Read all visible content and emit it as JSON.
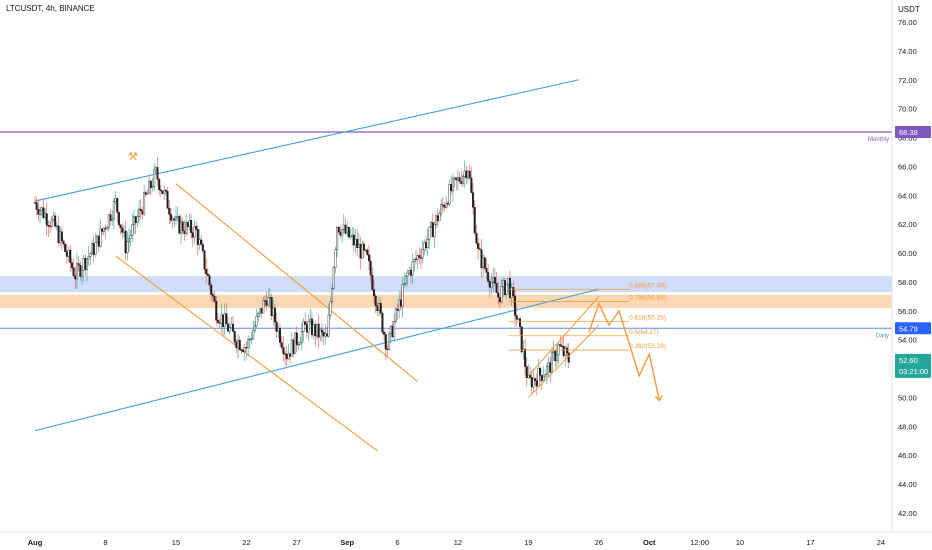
{
  "header": {
    "symbol_title": "LTCUSDT, 4h, BINANCE"
  },
  "axis": {
    "currency": "USDT",
    "y_ticks": [
      "76.00",
      "74.00",
      "72.00",
      "70.00",
      "68.00",
      "66.00",
      "64.00",
      "62.00",
      "60.00",
      "58.00",
      "56.00",
      "54.00",
      "52.00",
      "50.00",
      "48.00",
      "46.00",
      "44.00",
      "42.00"
    ],
    "x_ticks": [
      "Aug",
      "8",
      "15",
      "22",
      "27",
      "Sep",
      "6",
      "12",
      "19",
      "26",
      "Oct",
      "12:00",
      "10",
      "17",
      "24"
    ]
  },
  "colors": {
    "up": "#26a69a",
    "down": "#ef5350",
    "candle_body": "#1f1f1f",
    "channel": "#3ea0e0",
    "fib": "#f59a3a",
    "monthly": "#7e57c2",
    "daily": "#5b8def",
    "zone_blue": "#c7d7f7",
    "zone_orange": "#fbd0a6",
    "price_label": "#26a69a"
  },
  "badges": {
    "monthly": {
      "label": "Monthly",
      "value": "68.38"
    },
    "daily": {
      "label": "Daily",
      "value": "54.79"
    },
    "last_price": {
      "value": "52.60",
      "countdown": "03:21:00"
    }
  },
  "fib_levels": [
    {
      "ratio": "0.886",
      "label": "0.886(57.49)",
      "price": 57.49
    },
    {
      "ratio": "0.786",
      "label": "0.786(56.65)",
      "price": 56.65
    },
    {
      "ratio": "0.618",
      "label": "0.618(55.25)",
      "price": 55.25
    },
    {
      "ratio": "0.5",
      "label": "0.5(54.27)",
      "price": 54.27
    },
    {
      "ratio": "0.382",
      "label": "0.382(53.28)",
      "price": 53.28
    }
  ],
  "chart_data": {
    "type": "candlestick",
    "symbol": "LTCUSDT",
    "interval": "4h",
    "exchange": "BINANCE",
    "ylim": [
      41,
      77.5
    ],
    "x_range": [
      "Aug 1",
      "Sep 24"
    ],
    "grid": false,
    "monthly_level": 68.38,
    "daily_level": 54.79,
    "last_price": 52.6,
    "zones": [
      {
        "name": "blue-zone",
        "from": 57.3,
        "to": 58.4
      },
      {
        "name": "orange-zone",
        "from": 56.2,
        "to": 57.1
      }
    ],
    "ohlc_path": [
      {
        "date": "Aug 1",
        "price": 63.5
      },
      {
        "date": "Aug 3",
        "price": 61.8
      },
      {
        "date": "Aug 5",
        "price": 58.5
      },
      {
        "date": "Aug 7",
        "price": 60.5
      },
      {
        "date": "Aug 9",
        "price": 63.5
      },
      {
        "date": "Aug 10",
        "price": 60.5
      },
      {
        "date": "Aug 13",
        "price": 65.5
      },
      {
        "date": "Aug 15",
        "price": 62.0
      },
      {
        "date": "Aug 17",
        "price": 61.5
      },
      {
        "date": "Aug 19",
        "price": 56.0
      },
      {
        "date": "Aug 21",
        "price": 54.0
      },
      {
        "date": "Aug 22",
        "price": 53.5
      },
      {
        "date": "Aug 24",
        "price": 57.0
      },
      {
        "date": "Aug 26",
        "price": 53.0
      },
      {
        "date": "Aug 28",
        "price": 55.0
      },
      {
        "date": "Aug 30",
        "price": 54.0
      },
      {
        "date": "Aug 31",
        "price": 62.0
      },
      {
        "date": "Sep 2",
        "price": 60.5
      },
      {
        "date": "Sep 3",
        "price": 59.5
      },
      {
        "date": "Sep 5",
        "price": 53.5
      },
      {
        "date": "Sep 7",
        "price": 58.5
      },
      {
        "date": "Sep 9",
        "price": 61.0
      },
      {
        "date": "Sep 11",
        "price": 64.0
      },
      {
        "date": "Sep 13",
        "price": 66.0
      },
      {
        "date": "Sep 14",
        "price": 60.0
      },
      {
        "date": "Sep 16",
        "price": 57.0
      },
      {
        "date": "Sep 17",
        "price": 58.0
      },
      {
        "date": "Sep 18",
        "price": 55.0
      },
      {
        "date": "Sep 19",
        "price": 51.0
      },
      {
        "date": "Sep 21",
        "price": 52.0
      },
      {
        "date": "Sep 22",
        "price": 53.5
      },
      {
        "date": "Sep 23",
        "price": 52.6
      }
    ],
    "channels": [
      {
        "name": "upper-channel",
        "from": {
          "date": "Aug 1",
          "price": 63.6
        },
        "to": {
          "date": "Sep 24",
          "price": 72.0
        }
      },
      {
        "name": "lower-channel",
        "from": {
          "date": "Aug 1",
          "price": 47.7
        },
        "to": {
          "date": "Sep 26",
          "price": 57.5
        }
      },
      {
        "name": "desc-channel-top",
        "from": {
          "date": "Aug 15",
          "price": 64.8
        },
        "to": {
          "date": "Sep 8",
          "price": 51.1
        }
      },
      {
        "name": "desc-channel-bottom",
        "from": {
          "date": "Aug 9",
          "price": 59.8
        },
        "to": {
          "date": "Sep 4",
          "price": 46.3
        }
      }
    ],
    "projection": [
      {
        "date": "Sep 25",
        "price": 54.5
      },
      {
        "date": "Sep 26",
        "price": 56.5
      },
      {
        "date": "Sep 27",
        "price": 55.0
      },
      {
        "date": "Sep 28",
        "price": 56.0
      },
      {
        "date": "Sep 30",
        "price": 51.5
      },
      {
        "date": "Oct 1",
        "price": 53.0
      },
      {
        "date": "Oct 2",
        "price": 49.8
      }
    ]
  }
}
